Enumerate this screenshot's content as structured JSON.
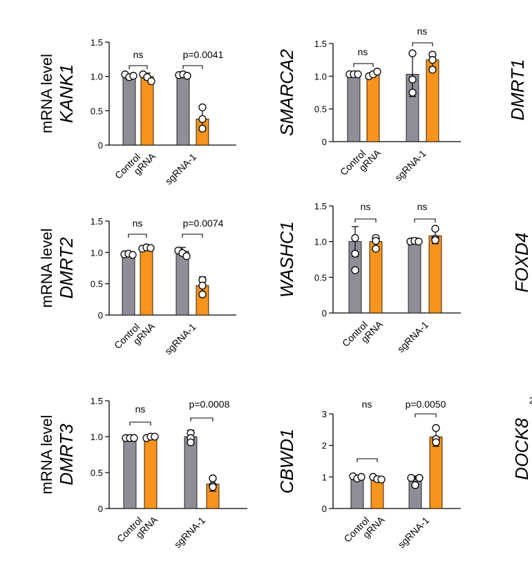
{
  "colors": {
    "control": "#8E8E98",
    "sg": "#F7941D",
    "axis": "#000000",
    "dot_fill": "#ffffff"
  },
  "chart_data": [
    {
      "type": "bar",
      "gene": "KANK1",
      "ylabel": "mRNA level",
      "ylim": [
        0,
        1.5
      ],
      "yticks": [
        "0",
        "0.5",
        "1.0",
        "1.5"
      ],
      "categories": [
        "Control gRNA",
        "sgRNA-1"
      ],
      "series": [
        {
          "values": [
            1.0,
            1.0
          ],
          "err": [
            0.04,
            0.02
          ],
          "points": [
            [
              1.03,
              0.99,
              1.01
            ],
            [
              1.02,
              1.03,
              1.01
            ]
          ]
        },
        {
          "values": [
            1.0,
            0.38
          ],
          "err": [
            0.05,
            0.17
          ],
          "points": [
            [
              1.03,
              0.99,
              0.93
            ],
            [
              0.55,
              0.38,
              0.24
            ]
          ]
        }
      ],
      "annotations": [
        "ns",
        "p=0.0041"
      ]
    },
    {
      "type": "bar",
      "gene": "SMARCA2",
      "ylabel": "",
      "ylim": [
        0,
        1.5
      ],
      "yticks": [
        "0",
        "0.5",
        "1.0",
        "1.5"
      ],
      "categories": [
        "Control gRNA",
        "sgRNA-1"
      ],
      "series": [
        {
          "values": [
            1.03,
            1.03
          ],
          "err": [
            0.01,
            0.34
          ],
          "points": [
            [
              1.03,
              1.03,
              1.03
            ],
            [
              1.35,
              0.95,
              0.75
            ]
          ]
        },
        {
          "values": [
            1.03,
            1.25
          ],
          "err": [
            0.03,
            0.11
          ],
          "points": [
            [
              1.0,
              1.03,
              1.07
            ],
            [
              1.33,
              1.25,
              1.1
            ]
          ]
        }
      ],
      "annotations": [
        "ns",
        "ns"
      ]
    },
    {
      "type": "bar",
      "gene": "DMRT2",
      "ylabel": "mRNA level",
      "ylim": [
        0,
        1.5
      ],
      "yticks": [
        "0",
        "0.5",
        "1.0",
        "1.5"
      ],
      "categories": [
        "Control gRNA",
        "sgRNA-1"
      ],
      "series": [
        {
          "values": [
            0.97,
            1.02
          ],
          "err": [
            0.02,
            0.06
          ],
          "points": [
            [
              0.97,
              0.98,
              0.96
            ],
            [
              1.03,
              0.99,
              0.94
            ]
          ]
        },
        {
          "values": [
            1.07,
            0.47
          ],
          "err": [
            0.02,
            0.14
          ],
          "points": [
            [
              1.06,
              1.08,
              1.07
            ],
            [
              0.56,
              0.47,
              0.33
            ]
          ]
        }
      ],
      "annotations": [
        "ns",
        "p=0.0074"
      ]
    },
    {
      "type": "bar",
      "gene": "WASHC1",
      "ylabel": "",
      "ylim": [
        0,
        1.5
      ],
      "yticks": [
        "0",
        "0.5",
        "1.0",
        "1.5"
      ],
      "categories": [
        "Control gRNA",
        "sgRNA-1"
      ],
      "series": [
        {
          "values": [
            1.0,
            1.01
          ],
          "err": [
            0.21,
            0.04
          ],
          "points": [
            [
              1.05,
              0.83,
              0.6
            ],
            [
              1.0,
              1.01,
              1.0
            ]
          ]
        },
        {
          "values": [
            1.0,
            1.08
          ],
          "err": [
            0.08,
            0.11
          ],
          "points": [
            [
              1.05,
              1.01,
              0.9
            ],
            [
              1.18,
              1.04,
              1.02
            ]
          ]
        }
      ],
      "annotations": [
        "ns",
        "ns"
      ]
    },
    {
      "type": "bar",
      "gene": "DMRT3",
      "ylabel": "mRNA level",
      "ylim": [
        0,
        1.5
      ],
      "yticks": [
        "0",
        "0.5",
        "1.0",
        "1.5"
      ],
      "categories": [
        "Control gRNA",
        "sgRNA-1"
      ],
      "series": [
        {
          "values": [
            0.98,
            1.0
          ],
          "err": [
            0.01,
            0.09
          ],
          "points": [
            [
              0.98,
              0.98,
              0.98
            ],
            [
              1.05,
              0.98,
              0.92
            ]
          ]
        },
        {
          "values": [
            0.99,
            0.34
          ],
          "err": [
            0.03,
            0.1
          ],
          "points": [
            [
              0.98,
              1.0,
              1.0
            ],
            [
              0.42,
              0.32,
              0.3
            ]
          ]
        }
      ],
      "annotations": [
        "ns",
        "p=0.0008"
      ]
    },
    {
      "type": "bar",
      "gene": "CBWD1",
      "ylabel": "",
      "ylim": [
        0,
        3
      ],
      "yticks": [
        "0",
        "1",
        "2",
        "3"
      ],
      "categories": [
        "Control gRNA",
        "sgRNA-1"
      ],
      "series": [
        {
          "values": [
            1.0,
            0.98
          ],
          "err": [
            0.05,
            0.05
          ],
          "points": [
            [
              1.02,
              0.95,
              1.0
            ],
            [
              0.97,
              0.74,
              0.97
            ]
          ]
        },
        {
          "values": [
            0.93,
            2.27
          ],
          "err": [
            0.07,
            0.3
          ],
          "points": [
            [
              1.0,
              0.93,
              0.92
            ],
            [
              2.55,
              2.2,
              2.1
            ]
          ]
        }
      ],
      "annotations": [
        "ns",
        "p=0.0050"
      ]
    },
    {
      "type": "bar",
      "gene": "DMRT1",
      "ylabel": "",
      "partial": true
    },
    {
      "type": "bar",
      "gene": "FOXD4",
      "ylabel": "",
      "partial": true
    },
    {
      "type": "bar",
      "gene": "DOCK8",
      "ylabel": "",
      "partial": true,
      "visible_tick": "2"
    }
  ]
}
